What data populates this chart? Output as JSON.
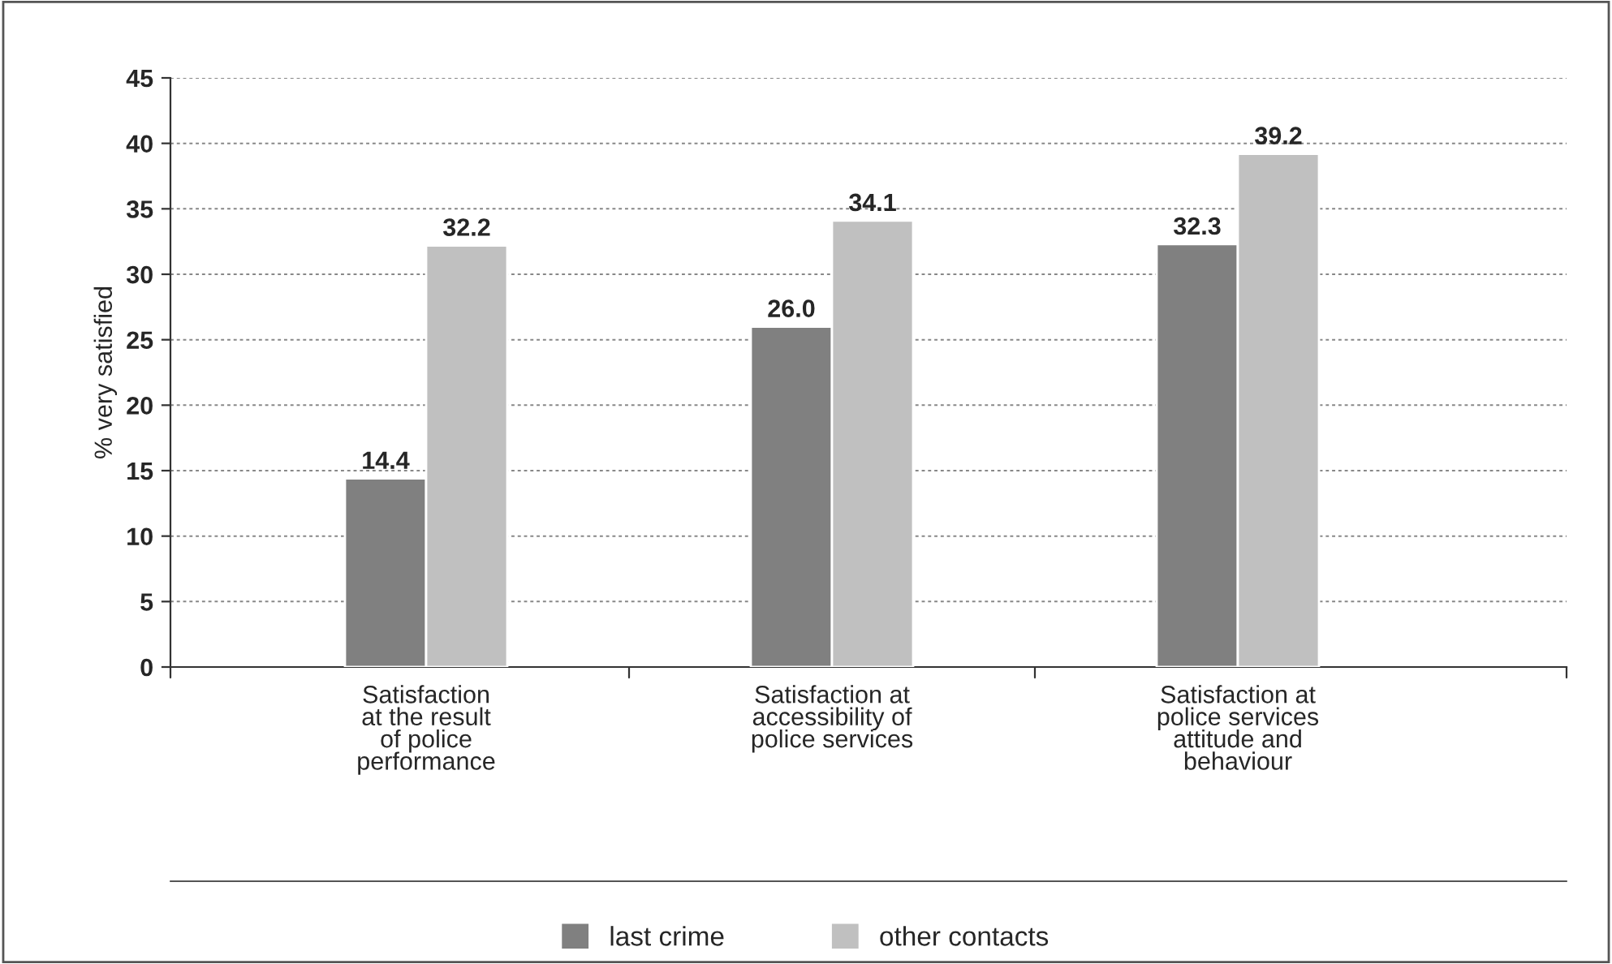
{
  "chart_data": {
    "type": "bar",
    "ylabel": "% very satisfied",
    "categories": [
      "Satisfaction\nat the result\nof police\nperformance",
      "Satisfaction at\naccessibility of\npolice services",
      "Satisfaction at\npolice services\nattitude and\nbehaviour"
    ],
    "series": [
      {
        "name": "last crime",
        "color": "#808080",
        "values": [
          14.4,
          26.0,
          32.3
        ],
        "value_labels": [
          "14.4",
          "26.0",
          "32.3"
        ]
      },
      {
        "name": "other contacts",
        "color": "#c0c0c0",
        "values": [
          32.2,
          34.1,
          39.2
        ],
        "value_labels": [
          "32.2",
          "34.1",
          "39.2"
        ]
      }
    ],
    "ylim": [
      0,
      45
    ],
    "yticks": [
      0,
      5,
      10,
      15,
      20,
      25,
      30,
      35,
      40,
      45
    ],
    "grid": "y",
    "legend": "bottom"
  }
}
